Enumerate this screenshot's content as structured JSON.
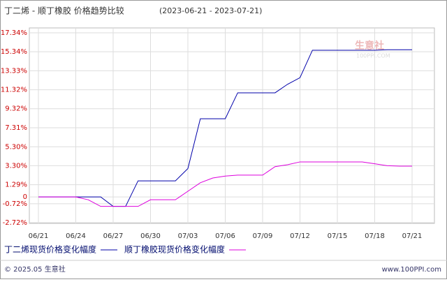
{
  "chart_data": {
    "type": "line",
    "title": "丁二烯 - 顺丁橡胶 价格趋势比较",
    "subtitle": "(2023-06-21 - 2023-07-21)",
    "categories": [
      "06/21",
      null,
      null,
      "06/24",
      null,
      null,
      "06/27",
      null,
      null,
      "06/30",
      null,
      null,
      "07/03",
      null,
      null,
      "07/06",
      null,
      null,
      "07/09",
      null,
      null,
      "07/12",
      null,
      null,
      "07/15",
      null,
      null,
      "07/18",
      null,
      null,
      "07/21"
    ],
    "series": [
      {
        "name": "丁二烯现货价格变化幅度",
        "color": "#0000aa",
        "values": [
          0,
          0,
          0,
          0,
          0,
          0,
          -1.0,
          -1.0,
          1.7,
          1.7,
          1.7,
          1.7,
          3.0,
          8.26,
          8.26,
          8.26,
          11.0,
          11.0,
          11.0,
          11.0,
          11.9,
          12.6,
          15.5,
          15.5,
          15.5,
          15.5,
          15.5,
          15.5,
          15.55,
          15.55,
          15.55
        ]
      },
      {
        "name": "顺丁橡胶现货价格变化幅度",
        "color": "#dd00dd",
        "values": [
          0,
          0,
          0,
          0,
          -0.3,
          -1.0,
          -1.0,
          -1.0,
          -1.0,
          -0.3,
          -0.3,
          -0.3,
          0.6,
          1.5,
          2.0,
          2.2,
          2.3,
          2.3,
          2.3,
          3.2,
          3.4,
          3.7,
          3.7,
          3.7,
          3.7,
          3.7,
          3.7,
          3.5,
          3.3,
          3.25,
          3.25
        ]
      }
    ],
    "ylim": [
      -2.72,
      17.34
    ],
    "yticks": [
      {
        "value": -2.72,
        "label": "-2.72%"
      },
      {
        "value": -0.72,
        "label": "-0.72%"
      },
      0,
      {
        "value": 1.29,
        "label": "1.29%"
      },
      {
        "value": 3.3,
        "label": "3.30%"
      },
      {
        "value": 5.3,
        "label": "5.30%"
      },
      {
        "value": 7.31,
        "label": "7.31%"
      },
      {
        "value": 9.32,
        "label": "9.32%"
      },
      {
        "value": 11.32,
        "label": "11.32%"
      },
      {
        "value": 13.33,
        "label": "13.33%"
      },
      {
        "value": 15.34,
        "label": "15.34%"
      },
      {
        "value": 17.34,
        "label": "17.34%"
      }
    ],
    "grid": true,
    "watermark": {
      "name": "生意社",
      "site": "100PPI.COM"
    },
    "footer": {
      "copyright": "© 2025.05 生意社",
      "url": "www.100PPI.com"
    }
  }
}
